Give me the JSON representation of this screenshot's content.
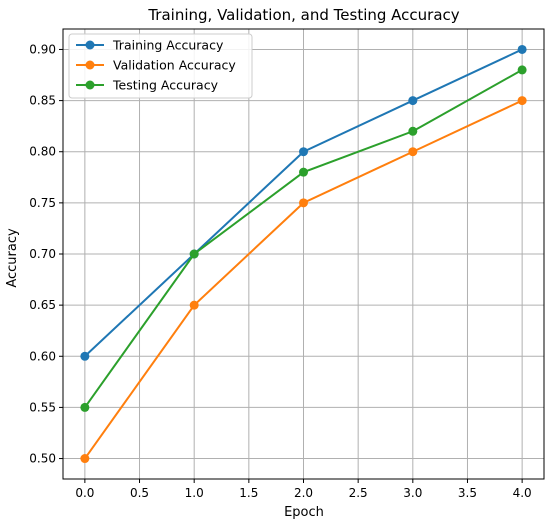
{
  "chart_data": {
    "type": "line",
    "title": "Training, Validation, and Testing Accuracy",
    "xlabel": "Epoch",
    "ylabel": "Accuracy",
    "xlim": [
      -0.2,
      4.2
    ],
    "ylim": [
      0.48,
      0.92
    ],
    "xticks": [
      0.0,
      0.5,
      1.0,
      1.5,
      2.0,
      2.5,
      3.0,
      3.5,
      4.0
    ],
    "xtick_labels": [
      "0.0",
      "0.5",
      "1.0",
      "1.5",
      "2.0",
      "2.5",
      "3.0",
      "3.5",
      "4.0"
    ],
    "yticks": [
      0.5,
      0.55,
      0.6,
      0.65,
      0.7,
      0.75,
      0.8,
      0.85,
      0.9
    ],
    "ytick_labels": [
      "0.50",
      "0.55",
      "0.60",
      "0.65",
      "0.70",
      "0.75",
      "0.80",
      "0.85",
      "0.90"
    ],
    "grid": true,
    "legend_position": "top-left",
    "x": [
      0,
      1,
      2,
      3,
      4
    ],
    "series": [
      {
        "name": "Training Accuracy",
        "color": "#1f77b4",
        "values": [
          0.6,
          0.7,
          0.8,
          0.85,
          0.9
        ]
      },
      {
        "name": "Validation Accuracy",
        "color": "#ff7f0e",
        "values": [
          0.5,
          0.65,
          0.75,
          0.8,
          0.85
        ]
      },
      {
        "name": "Testing Accuracy",
        "color": "#2ca02c",
        "values": [
          0.55,
          0.7,
          0.78,
          0.82,
          0.88
        ]
      }
    ]
  }
}
